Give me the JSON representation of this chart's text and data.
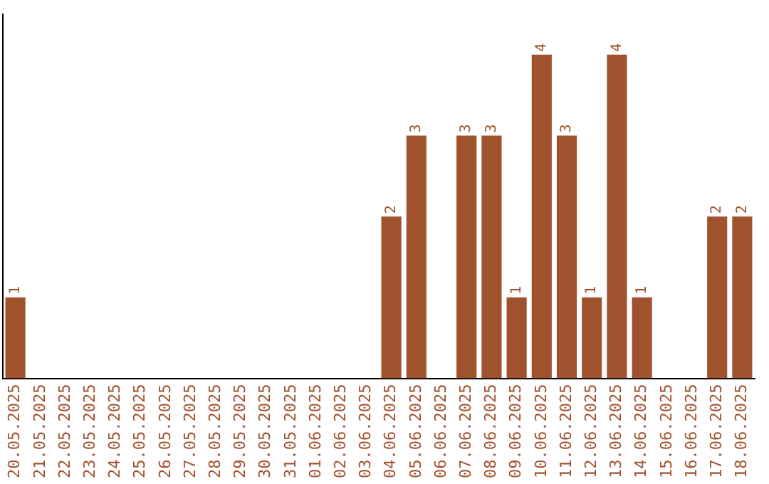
{
  "chart_data": {
    "type": "bar",
    "categories": [
      "20.05.2025",
      "21.05.2025",
      "22.05.2025",
      "23.05.2025",
      "24.05.2025",
      "25.05.2025",
      "26.05.2025",
      "27.05.2025",
      "28.05.2025",
      "29.05.2025",
      "30.05.2025",
      "31.05.2025",
      "01.06.2025",
      "02.06.2025",
      "03.06.2025",
      "04.06.2025",
      "05.06.2025",
      "06.06.2025",
      "07.06.2025",
      "08.06.2025",
      "09.06.2025",
      "10.06.2025",
      "11.06.2025",
      "12.06.2025",
      "13.06.2025",
      "14.06.2025",
      "15.06.2025",
      "16.06.2025",
      "17.06.2025",
      "18.06.2025"
    ],
    "values": [
      1,
      0,
      0,
      0,
      0,
      0,
      0,
      0,
      0,
      0,
      0,
      0,
      0,
      0,
      0,
      2,
      3,
      0,
      3,
      3,
      1,
      4,
      3,
      1,
      4,
      1,
      0,
      0,
      2,
      2
    ],
    "value_labels": [
      "1",
      null,
      null,
      null,
      null,
      null,
      null,
      null,
      null,
      null,
      null,
      null,
      null,
      null,
      null,
      "2",
      "3",
      null,
      "3",
      "3",
      "1",
      "4",
      "3",
      "1",
      "4",
      "1",
      null,
      null,
      "2",
      "2"
    ],
    "color": "#a0522d",
    "grid": false,
    "legend": false,
    "tick_labels": "x"
  }
}
